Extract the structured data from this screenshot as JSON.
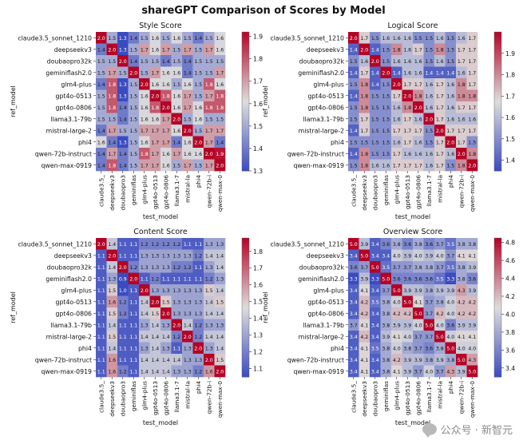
{
  "figure": {
    "title": "shareGPT Comparison of Scores by Model",
    "watermark": "公众号 · 新智元",
    "watermark_icon": "wechat-icon"
  },
  "colormap": {
    "low": "#3b4cc0",
    "mid": "#dddddd",
    "high": "#b40426"
  },
  "chart_data": [
    {
      "type": "heatmap",
      "title": "Style Score",
      "xlabel": "test_model",
      "ylabel": "ref_model",
      "row_labels": [
        "claude3.5_sonnet_1210",
        "deepseekv3",
        "doubaopro32k",
        "geminiflash2.0",
        "glm4-plus",
        "gpt4o-0513",
        "gpt4o-0806",
        "llama3.1-79b",
        "mistral-large-2",
        "phi4",
        "qwen-72b-instruct",
        "qwen-max-0919"
      ],
      "col_labels": [
        "claude3.5_",
        "deepseekv3",
        "doubaopro3",
        "geminiflas",
        "glm4-plus",
        "gpt4o-0513",
        "gpt4o-0806",
        "llama3.1-7",
        "mistral-la",
        "phi4",
        "qwen-72b-i",
        "qwen-max-0"
      ],
      "values": [
        [
          2.0,
          1.5,
          1.3,
          1.4,
          1.5,
          1.6,
          1.5,
          1.6,
          1.5,
          1.4,
          1.5,
          1.6
        ],
        [
          1.4,
          2.0,
          1.3,
          1.5,
          1.7,
          1.6,
          1.7,
          1.5,
          1.7,
          1.5,
          1.7,
          1.6
        ],
        [
          1.5,
          1.5,
          2.0,
          1.4,
          1.5,
          1.5,
          1.4,
          1.5,
          1.4,
          1.5,
          1.5,
          1.5
        ],
        [
          1.5,
          1.7,
          1.5,
          2.0,
          1.5,
          1.7,
          1.6,
          1.6,
          1.4,
          1.5,
          1.5,
          1.7
        ],
        [
          1.4,
          1.8,
          1.3,
          1.5,
          2.0,
          1.6,
          1.6,
          1.5,
          1.6,
          1.5,
          1.8,
          1.6
        ],
        [
          1.5,
          1.8,
          1.3,
          1.5,
          1.6,
          2.0,
          1.8,
          1.6,
          1.7,
          1.5,
          1.7,
          1.8
        ],
        [
          1.5,
          1.8,
          1.4,
          1.5,
          1.6,
          1.8,
          2.0,
          1.6,
          1.7,
          1.6,
          1.8,
          1.8
        ],
        [
          1.5,
          1.5,
          1.4,
          1.5,
          1.6,
          1.6,
          1.7,
          2.0,
          1.5,
          1.6,
          1.5,
          1.5
        ],
        [
          1.4,
          1.7,
          1.5,
          1.5,
          1.7,
          1.7,
          1.7,
          1.6,
          2.0,
          1.5,
          1.7,
          1.7
        ],
        [
          1.6,
          1.4,
          1.3,
          1.5,
          1.6,
          1.7,
          1.7,
          1.4,
          1.6,
          2.0,
          1.7,
          1.4
        ],
        [
          1.4,
          1.7,
          1.4,
          1.5,
          1.8,
          1.7,
          1.6,
          1.7,
          1.6,
          1.6,
          2.0,
          1.9
        ],
        [
          1.4,
          1.8,
          1.4,
          1.5,
          1.7,
          1.7,
          1.6,
          1.5,
          1.7,
          1.5,
          1.7,
          2.0
        ]
      ],
      "colorbar": {
        "range": [
          1.3,
          1.92
        ],
        "ticks": [
          "1.3",
          "1.4",
          "1.5",
          "1.6",
          "1.7",
          "1.8",
          "1.9"
        ]
      }
    },
    {
      "type": "heatmap",
      "title": "Logical Score",
      "xlabel": "test_model",
      "ylabel": "ref_model",
      "row_labels": [
        "claude3.5_sonnet_1210",
        "deepseekv3",
        "doubaopro32k",
        "geminiflash2.0",
        "glm4-plus",
        "gpt4o-0513",
        "gpt4o-0806",
        "llama3.1-79b",
        "mistral-large-2",
        "phi4",
        "qwen-72b-instruct",
        "qwen-max-0919"
      ],
      "col_labels": [
        "claude3.5_",
        "deepseekv3",
        "doubaopro3",
        "geminiflas",
        "glm4-plus",
        "gpt4o-0513",
        "gpt4o-0806",
        "llama3.1-7",
        "mistral-la",
        "phi4",
        "qwen-72b-i",
        "qwen-max-0"
      ],
      "values": [
        [
          2.0,
          1.7,
          1.5,
          1.6,
          1.6,
          1.6,
          1.5,
          1.5,
          1.6,
          1.5,
          1.6,
          1.7
        ],
        [
          1.4,
          2.0,
          1.4,
          1.5,
          1.8,
          1.6,
          1.7,
          1.5,
          1.8,
          1.5,
          1.7,
          1.7
        ],
        [
          1.5,
          1.6,
          2.0,
          1.5,
          1.6,
          1.6,
          1.6,
          1.5,
          1.6,
          1.5,
          1.7,
          1.7
        ],
        [
          1.4,
          1.7,
          1.4,
          2.0,
          1.4,
          1.6,
          1.6,
          1.4,
          1.4,
          1.4,
          1.6,
          1.7
        ],
        [
          1.5,
          1.8,
          1.4,
          1.5,
          2.0,
          1.7,
          1.7,
          1.6,
          1.7,
          1.6,
          1.8,
          1.7
        ],
        [
          1.4,
          1.8,
          1.5,
          1.5,
          1.7,
          2.0,
          1.8,
          1.6,
          1.7,
          1.6,
          1.8,
          1.8
        ],
        [
          1.5,
          1.8,
          1.5,
          1.5,
          1.6,
          1.8,
          2.0,
          1.6,
          1.7,
          1.6,
          1.7,
          1.7
        ],
        [
          1.5,
          1.7,
          1.5,
          1.5,
          1.6,
          1.7,
          1.6,
          2.0,
          1.7,
          1.6,
          1.6,
          1.6
        ],
        [
          1.4,
          1.7,
          1.5,
          1.5,
          1.7,
          1.7,
          1.7,
          1.5,
          2.0,
          1.7,
          1.7,
          1.7
        ],
        [
          1.5,
          1.5,
          1.5,
          1.5,
          1.6,
          1.7,
          1.6,
          1.5,
          1.7,
          2.0,
          1.7,
          1.5
        ],
        [
          1.4,
          1.8,
          1.5,
          1.5,
          1.7,
          1.6,
          1.6,
          1.6,
          1.7,
          1.6,
          2.0,
          1.8
        ],
        [
          1.5,
          1.8,
          1.6,
          1.6,
          1.7,
          1.7,
          1.7,
          1.6,
          1.7,
          1.5,
          1.8,
          2.0
        ]
      ],
      "colorbar": {
        "range": [
          1.35,
          2.0
        ],
        "ticks": [
          "1.4",
          "1.5",
          "1.6",
          "1.7",
          "1.8",
          "1.9"
        ]
      }
    },
    {
      "type": "heatmap",
      "title": "Content Score",
      "xlabel": "test_model",
      "ylabel": "ref_model",
      "row_labels": [
        "claude3.5_sonnet_1210",
        "deepseekv3",
        "doubaopro32k",
        "geminiflash2.0",
        "glm4-plus",
        "gpt4o-0513",
        "gpt4o-0806",
        "llama3.1-79b",
        "mistral-large-2",
        "phi4",
        "qwen-72b-instruct",
        "qwen-max-0919"
      ],
      "col_labels": [
        "claude3.5_",
        "deepseekv3",
        "doubaopro3",
        "geminiflas",
        "glm4-plus",
        "gpt4o-0513",
        "gpt4o-0806",
        "llama3.1-7",
        "mistral-la",
        "phi4",
        "qwen-72b-i",
        "qwen-max-0"
      ],
      "values": [
        [
          2.0,
          1.4,
          1.1,
          1.1,
          1.2,
          1.2,
          1.2,
          1.2,
          1.1,
          1.1,
          1.3,
          1.3
        ],
        [
          1.1,
          2.0,
          1.1,
          1.1,
          1.3,
          1.3,
          1.3,
          1.3,
          1.3,
          1.2,
          1.4,
          1.4
        ],
        [
          1.1,
          1.4,
          2.0,
          1.2,
          1.3,
          1.3,
          1.3,
          1.2,
          1.2,
          1.1,
          1.3,
          1.4
        ],
        [
          1.1,
          1.3,
          0.9,
          2.0,
          1.1,
          1.2,
          1.1,
          1.1,
          1.1,
          1.1,
          1.2,
          1.3
        ],
        [
          1.1,
          1.5,
          1.0,
          1.1,
          2.0,
          1.3,
          1.3,
          1.3,
          1.3,
          1.3,
          1.5,
          1.4
        ],
        [
          1.1,
          1.6,
          1.2,
          1.1,
          1.4,
          2.0,
          1.5,
          1.3,
          1.3,
          1.3,
          1.4,
          1.5
        ],
        [
          1.1,
          1.5,
          1.2,
          1.1,
          1.4,
          1.5,
          2.0,
          1.3,
          1.3,
          1.3,
          1.4,
          1.4
        ],
        [
          1.1,
          1.4,
          1.1,
          1.1,
          1.3,
          1.4,
          1.3,
          2.0,
          1.4,
          1.2,
          1.3,
          1.3
        ],
        [
          1.1,
          1.5,
          1.1,
          1.1,
          1.4,
          1.4,
          1.4,
          1.2,
          2.0,
          1.2,
          1.4,
          1.4
        ],
        [
          1.1,
          1.4,
          1.1,
          1.1,
          1.3,
          1.4,
          1.3,
          1.1,
          1.3,
          2.0,
          1.3,
          1.4
        ],
        [
          1.1,
          1.6,
          1.1,
          1.1,
          1.4,
          1.4,
          1.4,
          1.4,
          1.3,
          1.3,
          2.0,
          1.5
        ],
        [
          1.1,
          1.6,
          1.2,
          1.1,
          1.4,
          1.4,
          1.4,
          1.3,
          1.3,
          1.2,
          1.6,
          2.0
        ]
      ],
      "colorbar": {
        "range": [
          1.05,
          1.88
        ],
        "ticks": [
          "1.1",
          "1.2",
          "1.3",
          "1.4",
          "1.5",
          "1.6",
          "1.7",
          "1.8"
        ]
      }
    },
    {
      "type": "heatmap",
      "title": "Overview Score",
      "xlabel": "test_model",
      "ylabel": "ref_model",
      "row_labels": [
        "claude3.5_sonnet_1210",
        "deepseekv3",
        "doubaopro32k",
        "geminiflash2.0",
        "glm4-plus",
        "gpt4o-0513",
        "gpt4o-0806",
        "llama3.1-79b",
        "mistral-large-2",
        "phi4",
        "qwen-72b-instruct",
        "qwen-max-0919"
      ],
      "col_labels": [
        "claude3.5_",
        "deepseekv3",
        "doubaopro3",
        "geminiflas",
        "glm4-plus",
        "gpt4o-0513",
        "gpt4o-0806",
        "llama3.1-7",
        "mistral-la",
        "phi4",
        "qwen-72b-i",
        "qwen-max-0"
      ],
      "values": [
        [
          5.0,
          3.9,
          3.4,
          3.6,
          3.8,
          3.6,
          3.8,
          3.6,
          3.7,
          3.5,
          3.8,
          3.8
        ],
        [
          3.4,
          5.0,
          3.4,
          3.4,
          4.0,
          3.9,
          4.0,
          3.9,
          4.0,
          3.7,
          4.1,
          4.1
        ],
        [
          3.6,
          3.7,
          5.0,
          3.5,
          3.7,
          3.7,
          3.8,
          3.8,
          3.7,
          3.5,
          3.8,
          3.9
        ],
        [
          3.3,
          3.9,
          3.3,
          5.0,
          3.6,
          3.6,
          3.6,
          3.6,
          3.5,
          3.3,
          3.8,
          3.6
        ],
        [
          3.4,
          4.1,
          3.4,
          3.7,
          5.0,
          3.9,
          3.9,
          3.8,
          3.9,
          3.9,
          4.3,
          3.9
        ],
        [
          3.4,
          4.2,
          3.5,
          3.8,
          4.0,
          5.0,
          4.1,
          3.7,
          3.8,
          4.0,
          4.2,
          4.2
        ],
        [
          3.4,
          4.2,
          3.4,
          3.8,
          4.2,
          4.2,
          5.0,
          3.7,
          4.2,
          4.0,
          4.2,
          4.2
        ],
        [
          3.7,
          4.1,
          3.4,
          3.8,
          3.9,
          3.9,
          4.0,
          5.0,
          4.0,
          3.6,
          3.9,
          3.9
        ],
        [
          3.4,
          4.2,
          3.4,
          3.9,
          4.1,
          4.0,
          3.7,
          3.7,
          5.0,
          4.0,
          4.1,
          4.1
        ],
        [
          3.4,
          4.1,
          3.5,
          3.8,
          4.0,
          3.8,
          3.7,
          3.6,
          3.8,
          5.0,
          4.0,
          4.0
        ],
        [
          3.4,
          4.1,
          3.4,
          3.8,
          4.2,
          3.9,
          3.9,
          3.8,
          3.9,
          3.8,
          5.0,
          4.3
        ],
        [
          3.4,
          4.1,
          3.4,
          3.8,
          4.1,
          3.9,
          3.7,
          4.0,
          3.7,
          4.3,
          3.9,
          5.0
        ]
      ],
      "colorbar": {
        "range": [
          3.3,
          4.85
        ],
        "ticks": [
          "3.4",
          "3.6",
          "3.8",
          "4.0",
          "4.2",
          "4.4",
          "4.6",
          "4.8"
        ]
      }
    }
  ]
}
